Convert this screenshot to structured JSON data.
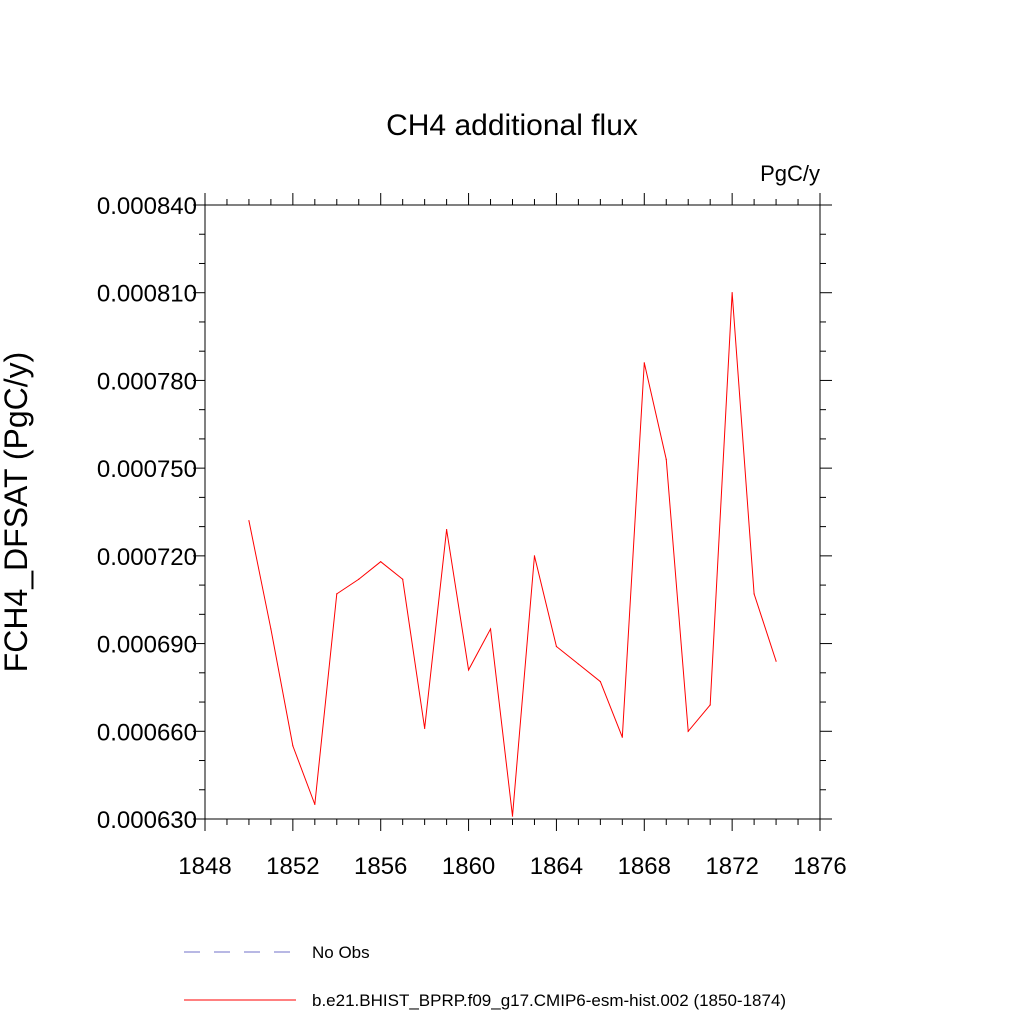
{
  "chart_data": {
    "type": "line",
    "title": "CH4 additional flux",
    "units_label": "PgC/y",
    "ylabel": "FCH4_DFSAT  (PgC/y)",
    "xlabel": "",
    "xlim": [
      1848,
      1876
    ],
    "ylim": [
      0.00063,
      0.00084
    ],
    "x_ticks": [
      "1848",
      "1852",
      "1856",
      "1860",
      "1864",
      "1868",
      "1872",
      "1876"
    ],
    "y_ticks": [
      "0.000630",
      "0.000660",
      "0.000690",
      "0.000720",
      "0.000750",
      "0.000780",
      "0.000810",
      "0.000840"
    ],
    "grid": false,
    "legend_position": "bottom",
    "series": [
      {
        "name": "b.e21.BHIST_BPRP.f09_g17.CMIP6-esm-hist.002 (1850-1874)",
        "color": "#ff0000",
        "style": "solid",
        "x": [
          1850,
          1851,
          1852,
          1853,
          1854,
          1855,
          1856,
          1857,
          1858,
          1859,
          1860,
          1861,
          1862,
          1863,
          1864,
          1865,
          1866,
          1867,
          1868,
          1869,
          1870,
          1871,
          1872,
          1873,
          1874
        ],
        "y": [
          0.000732,
          0.000695,
          0.000655,
          0.000635,
          0.000707,
          0.000712,
          0.000718,
          0.000712,
          0.000661,
          0.000729,
          0.000681,
          0.000695,
          0.000631,
          0.00072,
          0.000689,
          0.000683,
          0.000677,
          0.000658,
          0.000786,
          0.000753,
          0.00066,
          0.000669,
          0.00081,
          0.000707,
          0.000684
        ]
      },
      {
        "name": "No Obs",
        "color": "#7070c8",
        "style": "dashed",
        "x": [],
        "y": []
      }
    ]
  }
}
